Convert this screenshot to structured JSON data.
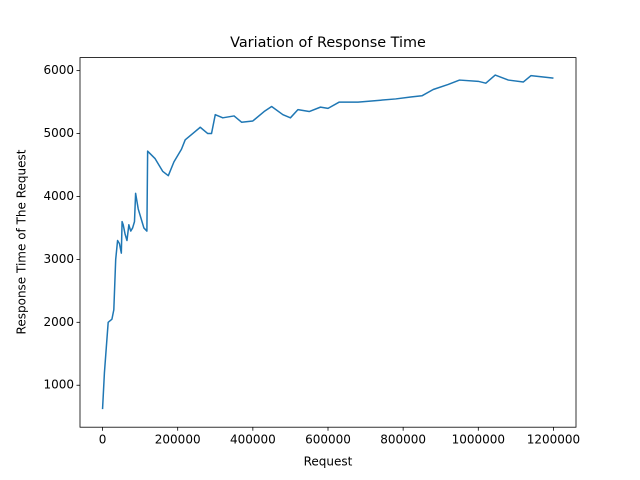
{
  "chart_data": {
    "type": "line",
    "title": "Variation of Response Time",
    "x_label": "Request",
    "y_label": "Response Time of The Request",
    "x": [
      0,
      5000,
      10000,
      15000,
      25000,
      30000,
      35000,
      40000,
      45000,
      50000,
      52000,
      55000,
      60000,
      65000,
      70000,
      75000,
      80000,
      85000,
      88000,
      95000,
      105000,
      110000,
      118000,
      120000,
      140000,
      160000,
      175000,
      190000,
      210000,
      220000,
      240000,
      260000,
      280000,
      290000,
      300000,
      320000,
      350000,
      370000,
      400000,
      430000,
      450000,
      480000,
      500000,
      520000,
      550000,
      580000,
      600000,
      630000,
      680000,
      720000,
      780000,
      820000,
      850000,
      880000,
      920000,
      950000,
      1000000,
      1020000,
      1045000,
      1080000,
      1120000,
      1140000,
      1170000,
      1200000
    ],
    "series": [
      {
        "name": "response time",
        "color": "#1f77b4",
        "values": [
          620,
          1200,
          1600,
          2000,
          2050,
          2200,
          3000,
          3300,
          3250,
          3100,
          3600,
          3550,
          3400,
          3300,
          3550,
          3450,
          3500,
          3600,
          4050,
          3800,
          3600,
          3500,
          3450,
          4720,
          4600,
          4400,
          4330,
          4550,
          4750,
          4900,
          5000,
          5100,
          5000,
          5000,
          5300,
          5250,
          5280,
          5180,
          5200,
          5350,
          5430,
          5300,
          5250,
          5380,
          5350,
          5420,
          5400,
          5500,
          5500,
          5520,
          5550,
          5580,
          5600,
          5700,
          5780,
          5850,
          5830,
          5800,
          5930,
          5850,
          5820,
          5920,
          5900,
          5880
        ]
      }
    ],
    "xlim": [
      -60000,
      1260000
    ],
    "ylim": [
      333,
      6207
    ],
    "xticks": [
      0,
      200000,
      400000,
      600000,
      800000,
      1000000,
      1200000
    ],
    "yticks": [
      1000,
      2000,
      3000,
      4000,
      5000,
      6000
    ]
  }
}
